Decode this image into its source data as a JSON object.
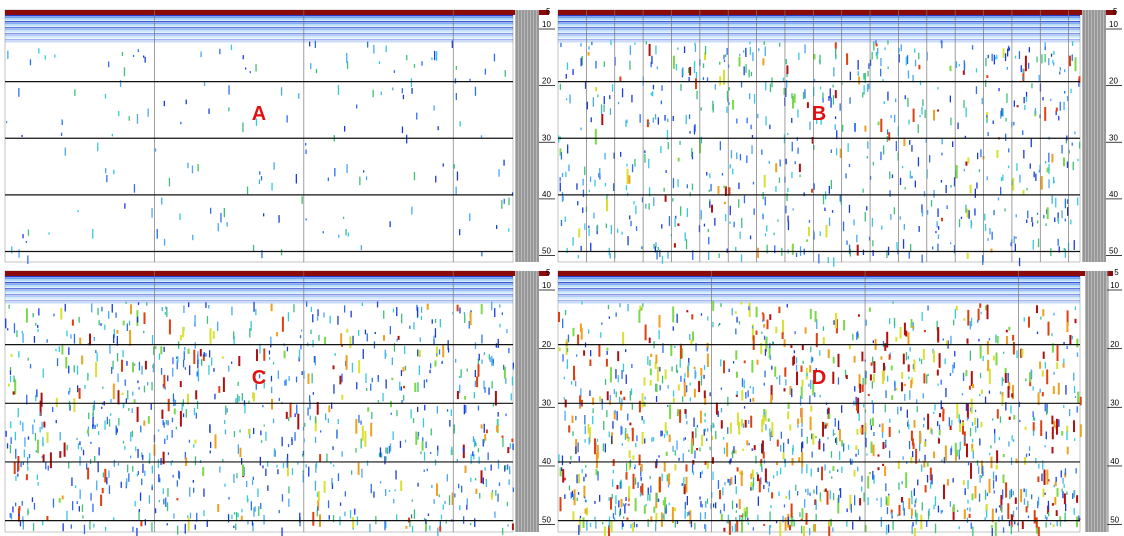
{
  "panels": [
    {
      "label": "A",
      "scale_top": "5",
      "depth_labels": [
        "10",
        "20",
        "30",
        "40",
        "50"
      ]
    },
    {
      "label": "B",
      "scale_top": "5",
      "depth_labels": [
        "10",
        "20",
        "30",
        "40",
        "50"
      ]
    },
    {
      "label": "C",
      "scale_top": "5",
      "depth_labels": [
        "10",
        "20",
        "30",
        "40",
        "50"
      ]
    },
    {
      "label": "D",
      "scale_top": "5",
      "depth_labels": [
        "10",
        "20",
        "30",
        "40",
        "50"
      ]
    }
  ]
}
